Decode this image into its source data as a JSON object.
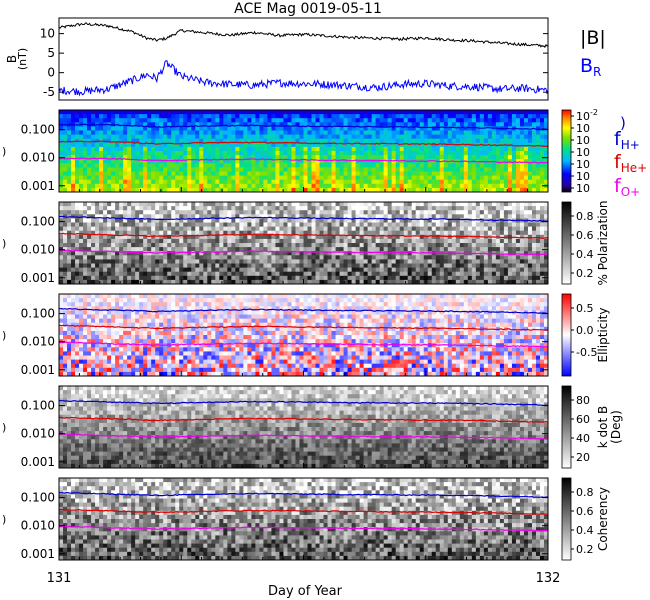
{
  "title": "ACE Mag 0019-05-11",
  "xlabel": "Day of Year",
  "x_ticks": [
    "131",
    "132"
  ],
  "legend": {
    "b_mag": "|B|",
    "b_r": "B",
    "b_r_sub": "R",
    "f_h": "f",
    "f_h_sub": "H+",
    "f_he": "f",
    "f_he_sub": "He+",
    "f_o": "f",
    "f_o_sub": "O+",
    "paren": ")"
  },
  "colors": {
    "b_mag": "#000000",
    "b_r": "#0000ff",
    "f_h": "#0000cc",
    "f_he": "#dd0000",
    "f_o": "#ee00ee"
  },
  "chart_data": [
    {
      "type": "line",
      "panel": "magnetic-field",
      "ylabel": "B (nT)",
      "ylabel_main": "B",
      "ylabel_unit": "(nT)",
      "y_ticks": [
        "10",
        "5",
        "0",
        "-5"
      ],
      "ylim": [
        -7,
        14
      ],
      "x": [
        131.0,
        131.05,
        131.1,
        131.15,
        131.18,
        131.2,
        131.22,
        131.25,
        131.3,
        131.35,
        131.4,
        131.45,
        131.5,
        131.55,
        131.6,
        131.65,
        131.7,
        131.75,
        131.8,
        131.85,
        131.9,
        131.95,
        132.0
      ],
      "series": [
        {
          "name": "|B|",
          "values": [
            11.5,
            12.5,
            12.0,
            10.5,
            8.8,
            8.3,
            8.8,
            10.8,
            10.2,
            9.6,
            10.3,
            9.5,
            9.8,
            9.4,
            9.0,
            8.8,
            8.6,
            8.9,
            8.4,
            8.1,
            7.6,
            7.2,
            6.8
          ]
        },
        {
          "name": "B",
          "values": [
            -4.5,
            -4.8,
            -4.2,
            -2.0,
            -0.5,
            -1.5,
            2.5,
            -1.0,
            -2.5,
            -3.0,
            -3.2,
            -2.6,
            -2.8,
            -3.0,
            -3.4,
            -3.8,
            -3.0,
            -2.8,
            -3.4,
            -3.6,
            -4.2,
            -4.0,
            -4.5
          ]
        }
      ]
    },
    {
      "type": "heatmap",
      "panel": "power-spectrum",
      "ylabel": "Frequency (Hz)",
      "y_ticks": [
        "0.100",
        "0.010",
        "0.001"
      ],
      "ylim": [
        0.0006,
        0.5
      ],
      "yscale": "log",
      "colorbar_ticks": [
        "10-2",
        "10",
        "10",
        "10",
        "10",
        "10",
        "10"
      ],
      "colorbar_label": "",
      "x": [
        131.0,
        131.1,
        131.2,
        131.3,
        131.4,
        131.5,
        131.6,
        131.7,
        131.8,
        131.9,
        132.0
      ],
      "series": [
        {
          "name": "H+",
          "values": [
            0.148,
            0.15,
            0.125,
            0.135,
            0.14,
            0.132,
            0.128,
            0.125,
            0.12,
            0.112,
            0.105
          ]
        },
        {
          "name": "He+",
          "values": [
            0.037,
            0.038,
            0.031,
            0.034,
            0.035,
            0.033,
            0.032,
            0.031,
            0.03,
            0.028,
            0.026
          ]
        },
        {
          "name": "O+",
          "values": [
            0.0093,
            0.0094,
            0.0078,
            0.0085,
            0.0088,
            0.0083,
            0.008,
            0.0078,
            0.0075,
            0.007,
            0.0066
          ]
        }
      ]
    },
    {
      "type": "heatmap",
      "panel": "polarization",
      "ylabel": "Frequency (Hz)",
      "y_ticks": [
        "0.100",
        "0.010",
        "0.001"
      ],
      "ylim": [
        0.0006,
        0.5
      ],
      "yscale": "log",
      "colorbar_ticks": [
        "0.8",
        "0.6",
        "0.4",
        "0.2"
      ],
      "colorbar_label": "% Polarization",
      "x": [
        131.0,
        131.2,
        131.4,
        131.6,
        131.8,
        132.0
      ],
      "series": [
        {
          "name": "H+",
          "values": [
            0.15,
            0.12,
            0.14,
            0.128,
            0.122,
            0.105
          ]
        },
        {
          "name": "He+",
          "values": [
            0.038,
            0.03,
            0.035,
            0.032,
            0.03,
            0.026
          ]
        },
        {
          "name": "O+",
          "values": [
            0.0095,
            0.0076,
            0.0088,
            0.008,
            0.0076,
            0.0066
          ]
        }
      ]
    },
    {
      "type": "heatmap",
      "panel": "ellipticity",
      "ylabel": "Frequency (Hz)",
      "y_ticks": [
        "0.100",
        "0.010",
        "0.001"
      ],
      "ylim": [
        0.0006,
        0.5
      ],
      "yscale": "log",
      "colorbar_ticks": [
        "0.5",
        "0.0",
        "-0.5"
      ],
      "colorbar_label": "Ellipticity",
      "x": [
        131.0,
        131.2,
        131.4,
        131.6,
        131.8,
        132.0
      ],
      "series": [
        {
          "name": "H+",
          "values": [
            0.15,
            0.12,
            0.14,
            0.128,
            0.122,
            0.105
          ]
        },
        {
          "name": "He+",
          "values": [
            0.038,
            0.03,
            0.035,
            0.032,
            0.03,
            0.026
          ]
        },
        {
          "name": "O+",
          "values": [
            0.0095,
            0.0076,
            0.0088,
            0.008,
            0.0076,
            0.0066
          ]
        }
      ]
    },
    {
      "type": "heatmap",
      "panel": "k-dot-b",
      "ylabel": "Frequency (Hz)",
      "y_ticks": [
        "0.100",
        "0.010",
        "0.001"
      ],
      "ylim": [
        0.0006,
        0.5
      ],
      "yscale": "log",
      "colorbar_ticks": [
        "80",
        "60",
        "40",
        "20"
      ],
      "colorbar_label": "k dot B",
      "colorbar_unit": "(Deg)",
      "x": [
        131.0,
        131.2,
        131.4,
        131.6,
        131.8,
        132.0
      ],
      "series": [
        {
          "name": "H+",
          "values": [
            0.15,
            0.12,
            0.14,
            0.128,
            0.122,
            0.105
          ]
        },
        {
          "name": "He+",
          "values": [
            0.038,
            0.03,
            0.035,
            0.032,
            0.03,
            0.026
          ]
        },
        {
          "name": "O+",
          "values": [
            0.0095,
            0.0076,
            0.0088,
            0.008,
            0.0076,
            0.0066
          ]
        }
      ]
    },
    {
      "type": "heatmap",
      "panel": "coherency",
      "ylabel": "Frequency (Hz)",
      "y_ticks": [
        "0.100",
        "0.010",
        "0.001"
      ],
      "ylim": [
        0.0006,
        0.5
      ],
      "yscale": "log",
      "colorbar_ticks": [
        "0.8",
        "0.6",
        "0.4",
        "0.2"
      ],
      "colorbar_label": "Coherency",
      "x": [
        131.0,
        131.2,
        131.4,
        131.6,
        131.8,
        132.0
      ],
      "series": [
        {
          "name": "H+",
          "values": [
            0.15,
            0.12,
            0.14,
            0.128,
            0.122,
            0.105
          ]
        },
        {
          "name": "He+",
          "values": [
            0.038,
            0.03,
            0.035,
            0.032,
            0.03,
            0.026
          ]
        },
        {
          "name": "O+",
          "values": [
            0.0095,
            0.0076,
            0.0088,
            0.008,
            0.0076,
            0.0066
          ]
        }
      ]
    }
  ]
}
